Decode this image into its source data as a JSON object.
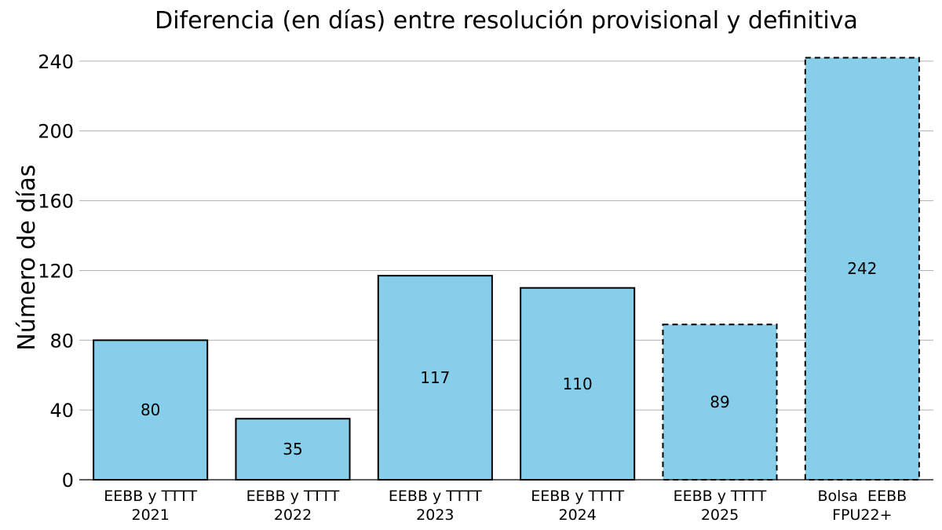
{
  "chart_data": {
    "type": "bar",
    "title": "Diferencia (en días) entre resolución provisional y definitiva",
    "xlabel": "",
    "ylabel": "Número de días",
    "categories": [
      [
        "EEBB y TTTT",
        "2021"
      ],
      [
        "EEBB y TTTT",
        "2022"
      ],
      [
        "EEBB y TTTT",
        "2023"
      ],
      [
        "EEBB y TTTT",
        "2024"
      ],
      [
        "EEBB y TTTT",
        "2025"
      ],
      [
        "Bolsa  EEBB",
        "FPU22+"
      ]
    ],
    "values": [
      80,
      35,
      117,
      110,
      89,
      242
    ],
    "dashed": [
      false,
      false,
      false,
      false,
      true,
      true
    ],
    "ylim": [
      0,
      244
    ],
    "yticks": [
      0,
      40,
      80,
      120,
      160,
      200,
      240
    ],
    "grid": "horizontal",
    "bar_color": "#87CEEB",
    "edge_color": "#000000"
  }
}
